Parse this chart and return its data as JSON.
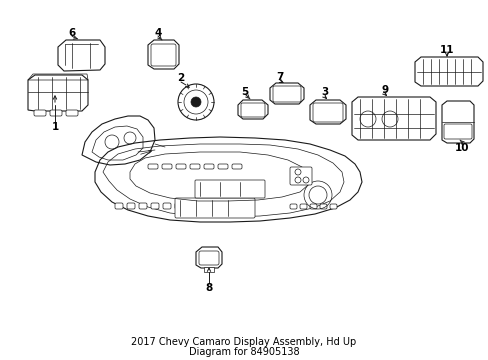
{
  "title_line1": "2017 Chevy Camaro Display Assembly, Hd Up",
  "title_line2": "Diagram for 84905138",
  "title_fontsize": 7,
  "title_color": "#000000",
  "bg_color": "#ffffff",
  "fig_width": 4.89,
  "fig_height": 3.6,
  "dpi": 100,
  "lc": "#1a1a1a",
  "lw_thin": 0.5,
  "lw_med": 0.8,
  "lw_thick": 1.0
}
